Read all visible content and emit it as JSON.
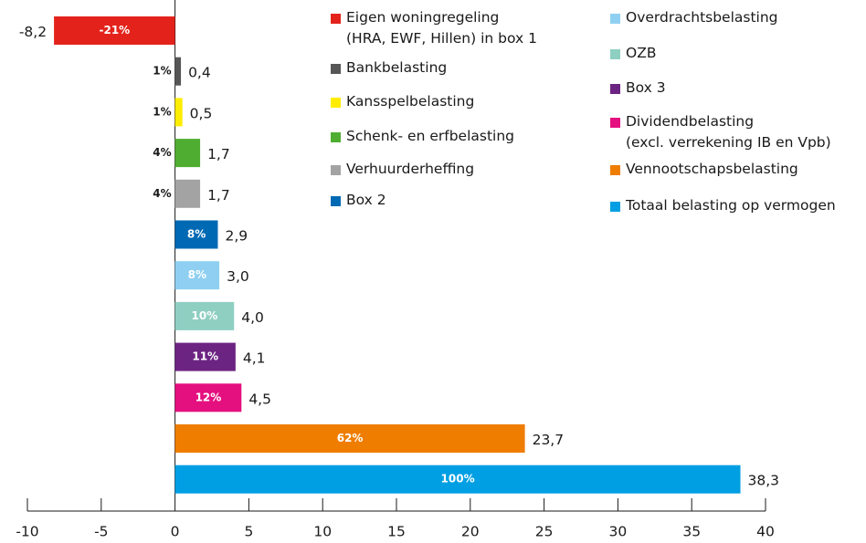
{
  "chart_data": {
    "type": "bar",
    "orientation": "horizontal",
    "categories": [
      "Eigen woningregeling\n(HRA, EWF, Hillen) in box 1",
      "Bankbelasting",
      "Kansspelbelasting",
      "Schenk- en erfbelasting",
      "Verhuurderheffing",
      "Box 2",
      "Overdrachtsbelasting",
      "OZB",
      "Box 3",
      "Dividendbelasting\n(excl. verrekening IB en Vpb)",
      "Vennootschapsbelasting",
      "Totaal belasting op vermogen"
    ],
    "values": [
      -8.2,
      0.4,
      0.5,
      1.7,
      1.7,
      2.9,
      3.0,
      4.0,
      4.1,
      4.5,
      23.7,
      38.3
    ],
    "value_labels": [
      "-8,2",
      "0,4",
      "0,5",
      "1,7",
      "1,7",
      "2,9",
      "3,0",
      "4,0",
      "4,1",
      "4,5",
      "23,7",
      "38,3"
    ],
    "shares": [
      -21,
      1,
      1,
      4,
      4,
      8,
      8,
      10,
      11,
      12,
      62,
      100
    ],
    "share_labels": [
      "-21%",
      "1%",
      "1%",
      "4%",
      "4%",
      "8%",
      "8%",
      "10%",
      "11%",
      "12%",
      "62%",
      "100%"
    ],
    "colors": [
      "#e3231b",
      "#575656",
      "#ffed00",
      "#4fae32",
      "#a3a3a3",
      "#0069b4",
      "#8fd0f2",
      "#8fcfc2",
      "#6c2483",
      "#e5107f",
      "#ef7d00",
      "#009fe3"
    ],
    "xlim": [
      -10,
      40
    ],
    "xticks": [
      -10,
      -5,
      0,
      5,
      10,
      15,
      20,
      25,
      30,
      35,
      40
    ],
    "legend": "top-right"
  }
}
